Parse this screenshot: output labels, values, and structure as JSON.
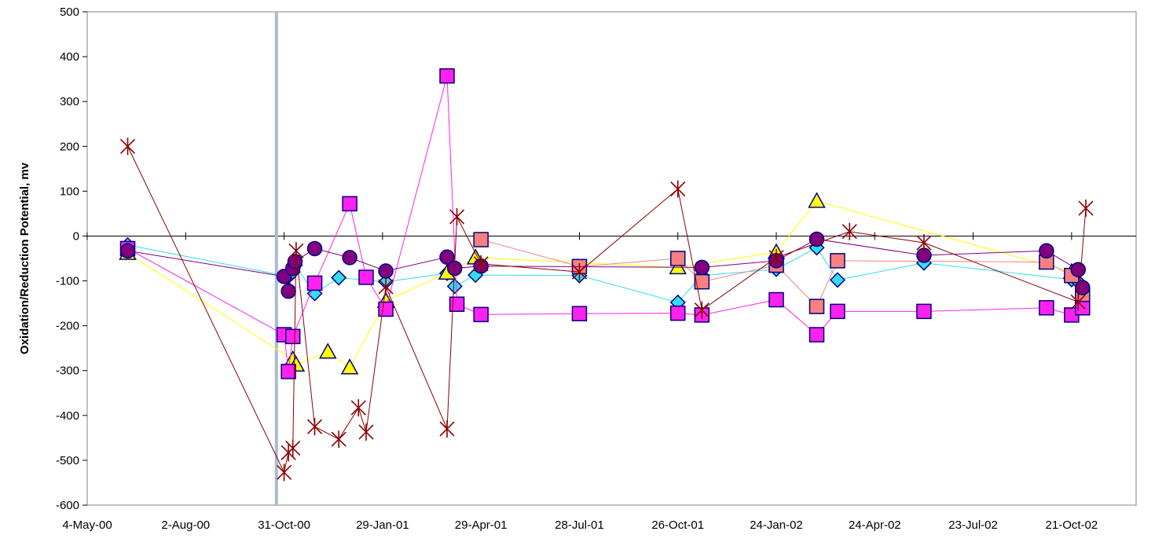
{
  "chart_data": {
    "type": "scatter",
    "title": "",
    "xlabel": "",
    "ylabel": "Oxidation/Reduction Potential, mv",
    "ylim": [
      -600,
      500
    ],
    "yticks": [
      500,
      400,
      300,
      200,
      100,
      0,
      -100,
      -200,
      -300,
      -400,
      -500,
      -600
    ],
    "xlim": [
      "2000-05-04",
      "2002-12-19"
    ],
    "xticks": [
      "4-May-00",
      "2-Aug-00",
      "31-Oct-00",
      "29-Jan-01",
      "29-Apr-01",
      "28-Jul-01",
      "26-Oct-01",
      "24-Jan-02",
      "24-Apr-02",
      "23-Jul-02",
      "21-Oct-02"
    ],
    "xtick_dates": [
      "2000-05-04",
      "2000-08-02",
      "2000-10-31",
      "2001-01-29",
      "2001-04-29",
      "2001-07-28",
      "2001-10-26",
      "2002-01-24",
      "2002-04-24",
      "2002-07-23",
      "2002-10-21"
    ],
    "reference_line": {
      "x": "2000-10-24",
      "color": "#a8bcd0"
    },
    "grid": false,
    "legend": "none",
    "series": [
      {
        "marker": "diamond",
        "fill": "#33ddee",
        "line_color": "#33ddee",
        "points": [
          {
            "x": "2000-06-10",
            "y": -20
          },
          {
            "x": "2000-11-04",
            "y": -90
          },
          {
            "x": "2000-11-08",
            "y": -80
          },
          {
            "x": "2000-11-10",
            "y": -65
          },
          {
            "x": "2000-11-28",
            "y": -128
          },
          {
            "x": "2000-12-20",
            "y": -93
          },
          {
            "x": "2001-02-01",
            "y": -102
          },
          {
            "x": "2001-03-29",
            "y": -83
          },
          {
            "x": "2001-04-05",
            "y": -112
          },
          {
            "x": "2001-04-24",
            "y": -87
          },
          {
            "x": "2001-07-28",
            "y": -88
          },
          {
            "x": "2001-10-26",
            "y": -148
          },
          {
            "x": "2001-11-17",
            "y": -88
          },
          {
            "x": "2002-01-24",
            "y": -74
          },
          {
            "x": "2002-03-02",
            "y": -26
          },
          {
            "x": "2002-03-21",
            "y": -98
          },
          {
            "x": "2002-06-08",
            "y": -60
          },
          {
            "x": "2002-10-21",
            "y": -97
          },
          {
            "x": "2002-10-27",
            "y": -102
          }
        ]
      },
      {
        "marker": "triangle",
        "fill": "#ffff00",
        "line_color": "#ffff00",
        "points": [
          {
            "x": "2000-06-10",
            "y": -38
          },
          {
            "x": "2000-11-08",
            "y": -275
          },
          {
            "x": "2000-11-11",
            "y": -287
          },
          {
            "x": "2000-12-10",
            "y": -258
          },
          {
            "x": "2000-12-30",
            "y": -293
          },
          {
            "x": "2001-02-01",
            "y": -145
          },
          {
            "x": "2001-03-29",
            "y": -82
          },
          {
            "x": "2001-04-24",
            "y": -48
          },
          {
            "x": "2001-10-26",
            "y": -70
          },
          {
            "x": "2002-01-24",
            "y": -36
          },
          {
            "x": "2002-03-02",
            "y": 78
          },
          {
            "x": "2002-10-21",
            "y": -80
          }
        ]
      },
      {
        "marker": "square",
        "fill": "#ff22ee",
        "line_color": "#ff22ee",
        "points": [
          {
            "x": "2000-06-10",
            "y": -28
          },
          {
            "x": "2000-10-31",
            "y": -220
          },
          {
            "x": "2000-11-04",
            "y": -302
          },
          {
            "x": "2000-11-08",
            "y": -224
          },
          {
            "x": "2000-11-28",
            "y": -105
          },
          {
            "x": "2000-12-30",
            "y": 72
          },
          {
            "x": "2001-01-14",
            "y": -92
          },
          {
            "x": "2001-02-01",
            "y": -163
          },
          {
            "x": "2001-03-29",
            "y": 357
          },
          {
            "x": "2001-04-07",
            "y": -152
          },
          {
            "x": "2001-04-29",
            "y": -175
          },
          {
            "x": "2001-07-28",
            "y": -173
          },
          {
            "x": "2001-10-26",
            "y": -172
          },
          {
            "x": "2001-11-17",
            "y": -176
          },
          {
            "x": "2002-01-24",
            "y": -142
          },
          {
            "x": "2002-03-02",
            "y": -220
          },
          {
            "x": "2002-03-21",
            "y": -168
          },
          {
            "x": "2002-06-08",
            "y": -168
          },
          {
            "x": "2002-09-28",
            "y": -160
          },
          {
            "x": "2002-10-21",
            "y": -176
          },
          {
            "x": "2002-10-31",
            "y": -160
          }
        ]
      },
      {
        "marker": "square",
        "fill": "#f88080",
        "line_color": "#f88080",
        "points": [
          {
            "x": "2001-04-29",
            "y": -8
          },
          {
            "x": "2001-07-28",
            "y": -68
          },
          {
            "x": "2001-10-26",
            "y": -50
          },
          {
            "x": "2001-11-17",
            "y": -102
          },
          {
            "x": "2002-01-24",
            "y": -65
          },
          {
            "x": "2002-03-02",
            "y": -157
          },
          {
            "x": "2002-03-21",
            "y": -55
          },
          {
            "x": "2002-09-28",
            "y": -58
          },
          {
            "x": "2002-10-21",
            "y": -88
          },
          {
            "x": "2002-10-31",
            "y": -130
          }
        ]
      },
      {
        "marker": "circle",
        "fill": "#800080",
        "line_color": "#800080",
        "points": [
          {
            "x": "2000-06-10",
            "y": -33
          },
          {
            "x": "2000-10-31",
            "y": -90
          },
          {
            "x": "2000-11-04",
            "y": -123
          },
          {
            "x": "2000-11-08",
            "y": -72
          },
          {
            "x": "2000-11-10",
            "y": -57
          },
          {
            "x": "2000-11-28",
            "y": -28
          },
          {
            "x": "2000-12-30",
            "y": -48
          },
          {
            "x": "2001-02-01",
            "y": -78
          },
          {
            "x": "2001-03-29",
            "y": -47
          },
          {
            "x": "2001-04-05",
            "y": -72
          },
          {
            "x": "2001-04-29",
            "y": -67
          },
          {
            "x": "2001-11-17",
            "y": -70
          },
          {
            "x": "2002-01-24",
            "y": -55
          },
          {
            "x": "2002-03-02",
            "y": -7
          },
          {
            "x": "2002-06-08",
            "y": -43
          },
          {
            "x": "2002-09-28",
            "y": -33
          },
          {
            "x": "2002-10-27",
            "y": -75
          },
          {
            "x": "2002-10-31",
            "y": -115
          }
        ]
      },
      {
        "marker": "asterisk",
        "fill": "#8b0000",
        "line_color": "#8b0000",
        "points": [
          {
            "x": "2000-06-10",
            "y": 200
          },
          {
            "x": "2000-10-31",
            "y": -527
          },
          {
            "x": "2000-11-04",
            "y": -483
          },
          {
            "x": "2000-11-08",
            "y": -473
          },
          {
            "x": "2000-11-11",
            "y": -33
          },
          {
            "x": "2000-11-28",
            "y": -425
          },
          {
            "x": "2000-12-20",
            "y": -453
          },
          {
            "x": "2001-01-07",
            "y": -383
          },
          {
            "x": "2001-01-14",
            "y": -437
          },
          {
            "x": "2001-02-01",
            "y": -113
          },
          {
            "x": "2001-03-29",
            "y": -430
          },
          {
            "x": "2001-04-07",
            "y": 43
          },
          {
            "x": "2001-04-29",
            "y": -62
          },
          {
            "x": "2001-07-28",
            "y": -80
          },
          {
            "x": "2001-10-26",
            "y": 105
          },
          {
            "x": "2001-11-17",
            "y": -165
          },
          {
            "x": "2002-01-24",
            "y": -48
          },
          {
            "x": "2002-04-01",
            "y": 10
          },
          {
            "x": "2002-06-08",
            "y": -15
          },
          {
            "x": "2002-10-27",
            "y": -147
          },
          {
            "x": "2002-11-03",
            "y": 62
          }
        ]
      }
    ]
  }
}
